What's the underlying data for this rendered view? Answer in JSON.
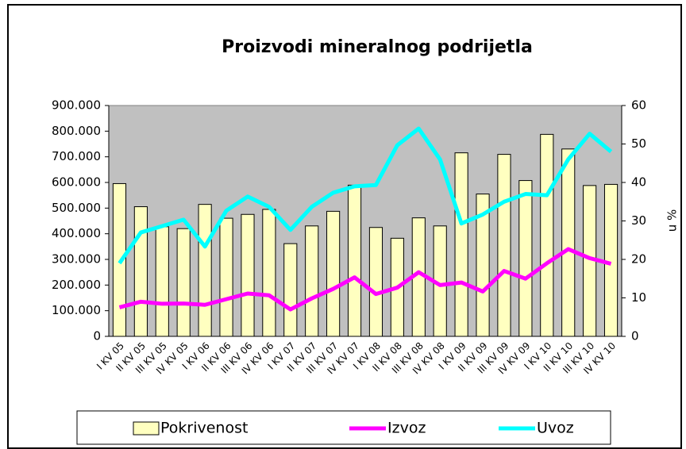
{
  "chart_data": {
    "type": "bar_line",
    "title": "Proizvodi mineralnog podrijetla",
    "y2_label": "u %",
    "categories": [
      "I KV 05",
      "II KV 05",
      "III KV 05",
      "IV KV 05",
      "I KV 06",
      "II KV 06",
      "III KV 06",
      "IV KV 06",
      "I KV 07",
      "II KV 07",
      "III KV 07",
      "IV KV 07",
      "I KV 08",
      "II KV 08",
      "III KV 08",
      "IV KV 08",
      "I KV 09",
      "II KV 09",
      "III KV 09",
      "IV KV 09",
      "I KV 10",
      "II KV 10",
      "III KV 10",
      "IV KV 10"
    ],
    "series": [
      {
        "name": "Pokrivenost",
        "type": "bar",
        "axis": "y2",
        "color": "#ffffc0",
        "values": [
          39.7,
          33.7,
          28.5,
          28,
          34.3,
          30.7,
          31.7,
          33,
          24.1,
          28.7,
          32.5,
          39.3,
          28.3,
          25.5,
          30.8,
          28.7,
          47.7,
          37,
          47.3,
          40.5,
          52.5,
          48.7,
          39.2,
          39.5
        ]
      },
      {
        "name": "Izvoz",
        "type": "line",
        "color": "#ff00ff",
        "values": [
          113000,
          135000,
          127000,
          128000,
          123000,
          145000,
          167000,
          160000,
          105000,
          148000,
          185000,
          230000,
          165000,
          190000,
          250000,
          200000,
          210000,
          175000,
          255000,
          225000,
          285000,
          340000,
          305000,
          283000
        ]
      },
      {
        "name": "Uvoz",
        "type": "line",
        "color": "#00ffff",
        "values": [
          285000,
          405000,
          430000,
          455000,
          350000,
          490000,
          545000,
          505000,
          415000,
          505000,
          560000,
          585000,
          590000,
          745000,
          810000,
          690000,
          440000,
          475000,
          525000,
          555000,
          550000,
          690000,
          790000,
          720000
        ]
      }
    ],
    "ylim": [
      0,
      900000
    ],
    "yticks": [
      0,
      {
        "value": 100000,
        "label": "100.000"
      },
      {
        "value": 200000,
        "label": "200.000"
      },
      {
        "value": 300000,
        "label": "300.000"
      },
      {
        "value": 400000,
        "label": "400.000"
      },
      {
        "value": 500000,
        "label": "500.000"
      },
      {
        "value": 600000,
        "label": "600.000"
      },
      {
        "value": 700000,
        "label": "700.000"
      },
      {
        "value": 800000,
        "label": "800.000"
      },
      {
        "value": 900000,
        "label": "900.000"
      }
    ],
    "y2lim": [
      0,
      60
    ],
    "y2ticks": [
      0,
      10,
      20,
      30,
      40,
      50,
      60
    ],
    "plot_background": "#c0c0c0"
  }
}
